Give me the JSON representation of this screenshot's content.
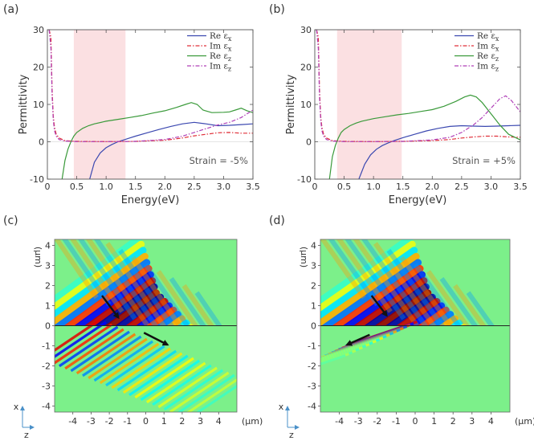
{
  "panel_labels": [
    "(a)",
    "(b)",
    "(c)",
    "(d)"
  ],
  "chart_data": [
    {
      "type": "line",
      "panel": "(a)",
      "xlabel": "Energy(eV)",
      "ylabel": "Permittivity",
      "xlim": [
        0,
        3.5
      ],
      "ylim": [
        -10,
        30
      ],
      "xticks": [
        "0",
        "0.5",
        "1.0",
        "1.5",
        "2.0",
        "2.5",
        "3.0",
        "3.5"
      ],
      "yticks": [
        "-10",
        "0",
        "10",
        "20",
        "30"
      ],
      "highlight_band": [
        0.45,
        1.33
      ],
      "annotation": "Strain = -5%",
      "legend_position": "top-right",
      "series": [
        {
          "name": "Re ε_x",
          "label": "Re ε",
          "sub": "x",
          "color": "#3b48b0",
          "style": "solid",
          "x": [
            0.72,
            0.8,
            0.9,
            1.0,
            1.1,
            1.2,
            1.3,
            1.4,
            1.5,
            1.7,
            1.9,
            2.1,
            2.3,
            2.5,
            2.7,
            2.9,
            3.1,
            3.3,
            3.5
          ],
          "y": [
            -10,
            -5.5,
            -3.0,
            -1.6,
            -0.7,
            0.0,
            0.5,
            1.0,
            1.5,
            2.4,
            3.3,
            4.1,
            4.8,
            5.2,
            4.8,
            4.3,
            4.4,
            4.6,
            4.8
          ]
        },
        {
          "name": "Im ε_x",
          "label": "Im ε",
          "sub": "x",
          "color": "#e0303a",
          "style": "dashdot",
          "x": [
            0.03,
            0.06,
            0.08,
            0.1,
            0.12,
            0.15,
            0.2,
            0.3,
            0.5,
            1.0,
            1.5,
            2.0,
            2.3,
            2.5,
            2.7,
            2.9,
            3.1,
            3.3,
            3.5
          ],
          "y": [
            30,
            28,
            14,
            7,
            4,
            2,
            1,
            0.3,
            0.1,
            0.05,
            0.1,
            0.4,
            1.0,
            1.6,
            2.0,
            2.4,
            2.5,
            2.3,
            2.3
          ]
        },
        {
          "name": "Re ε_z",
          "label": "Re ε",
          "sub": "z",
          "color": "#3a9a3a",
          "style": "solid",
          "x": [
            0.25,
            0.3,
            0.35,
            0.4,
            0.45,
            0.5,
            0.6,
            0.7,
            0.8,
            1.0,
            1.2,
            1.4,
            1.6,
            1.8,
            2.0,
            2.2,
            2.35,
            2.45,
            2.55,
            2.65,
            2.8,
            3.0,
            3.1,
            3.2,
            3.3,
            3.4,
            3.5
          ],
          "y": [
            -10,
            -5,
            -2,
            0,
            1.5,
            2.5,
            3.6,
            4.3,
            4.8,
            5.5,
            6.0,
            6.5,
            7.0,
            7.7,
            8.3,
            9.2,
            10.0,
            10.5,
            10.0,
            8.5,
            7.8,
            7.9,
            8.0,
            8.5,
            9.0,
            8.3,
            7.8
          ]
        },
        {
          "name": "Im ε_z",
          "label": "Im ε",
          "sub": "z",
          "color": "#b040b8",
          "style": "dashdot",
          "x": [
            0.03,
            0.06,
            0.08,
            0.1,
            0.12,
            0.15,
            0.2,
            0.3,
            0.5,
            1.0,
            1.5,
            2.0,
            2.3,
            2.5,
            2.7,
            2.9,
            3.1,
            3.3,
            3.5
          ],
          "y": [
            30,
            25,
            12,
            6,
            3,
            1.5,
            0.6,
            0.2,
            0.05,
            0.05,
            0.1,
            0.6,
            1.5,
            2.5,
            3.5,
            4.5,
            5.2,
            6.5,
            8.5
          ]
        }
      ]
    },
    {
      "type": "line",
      "panel": "(b)",
      "xlabel": "Energy(eV)",
      "ylabel": "Permittivity",
      "xlim": [
        0,
        3.5
      ],
      "ylim": [
        -10,
        30
      ],
      "xticks": [
        "0",
        "0.5",
        "1.0",
        "1.5",
        "2.0",
        "2.5",
        "3.0",
        "3.5"
      ],
      "yticks": [
        "-10",
        "0",
        "10",
        "20",
        "30"
      ],
      "highlight_band": [
        0.38,
        1.48
      ],
      "annotation": "Strain = +5%",
      "legend_position": "top-right",
      "series": [
        {
          "name": "Re ε_x",
          "label": "Re ε",
          "sub": "x",
          "color": "#3b48b0",
          "style": "solid",
          "x": [
            0.75,
            0.85,
            0.95,
            1.05,
            1.15,
            1.25,
            1.35,
            1.5,
            1.7,
            1.9,
            2.1,
            2.3,
            2.5,
            2.7,
            2.9,
            3.1,
            3.3,
            3.5
          ],
          "y": [
            -10,
            -6,
            -3.5,
            -2,
            -1.0,
            -0.3,
            0.3,
            1.1,
            2.0,
            2.9,
            3.6,
            4.1,
            4.3,
            4.2,
            4.1,
            4.2,
            4.3,
            4.4
          ]
        },
        {
          "name": "Im ε_x",
          "label": "Im ε",
          "sub": "x",
          "color": "#e0303a",
          "style": "dashdot",
          "x": [
            0.03,
            0.06,
            0.08,
            0.1,
            0.12,
            0.15,
            0.2,
            0.3,
            0.5,
            1.0,
            1.5,
            2.0,
            2.3,
            2.5,
            2.7,
            2.9,
            3.1,
            3.3,
            3.5
          ],
          "y": [
            30,
            28,
            14,
            7,
            4,
            2,
            1,
            0.3,
            0.1,
            0.05,
            0.1,
            0.3,
            0.6,
            1.0,
            1.3,
            1.5,
            1.5,
            1.3,
            1.2
          ]
        },
        {
          "name": "Re ε_z",
          "label": "Re ε",
          "sub": "z",
          "color": "#3a9a3a",
          "style": "solid",
          "x": [
            0.25,
            0.3,
            0.35,
            0.4,
            0.45,
            0.5,
            0.6,
            0.7,
            0.8,
            1.0,
            1.2,
            1.4,
            1.6,
            1.8,
            2.0,
            2.2,
            2.4,
            2.55,
            2.65,
            2.75,
            2.85,
            2.95,
            3.05,
            3.15,
            3.3,
            3.5
          ],
          "y": [
            -10,
            -4,
            -1,
            1,
            2.5,
            3.3,
            4.3,
            5.0,
            5.5,
            6.2,
            6.7,
            7.2,
            7.6,
            8.1,
            8.6,
            9.5,
            10.8,
            12.0,
            12.5,
            12.0,
            10.5,
            8.5,
            6.5,
            4.5,
            2.0,
            0.5
          ]
        },
        {
          "name": "Im ε_z",
          "label": "Im ε",
          "sub": "z",
          "color": "#b040b8",
          "style": "dashdot",
          "x": [
            0.03,
            0.06,
            0.08,
            0.1,
            0.12,
            0.15,
            0.2,
            0.3,
            0.5,
            1.0,
            1.5,
            2.0,
            2.3,
            2.5,
            2.7,
            2.85,
            3.0,
            3.15,
            3.25,
            3.35,
            3.5
          ],
          "y": [
            30,
            25,
            12,
            6,
            3,
            1.5,
            0.6,
            0.2,
            0.05,
            0.05,
            0.1,
            0.5,
            1.2,
            2.5,
            4.5,
            6.5,
            9.0,
            11.5,
            12.3,
            11.0,
            8.0
          ]
        }
      ]
    },
    {
      "type": "heatmap",
      "panel": "(c)",
      "x_unit": "(μm)",
      "y_unit": "(μm)",
      "xlim": [
        -5,
        5
      ],
      "ylim": [
        -4.3,
        4.3
      ],
      "xticks": [
        "-4",
        "-3",
        "-2",
        "-1",
        "0",
        "1",
        "2",
        "3",
        "4"
      ],
      "yticks": [
        "4",
        "3",
        "2",
        "1",
        "0",
        "-1",
        "-2",
        "-3",
        "-4"
      ],
      "interface_y": 0,
      "incident_arrow": {
        "from": [
          -2.4,
          1.5
        ],
        "to": [
          -1.5,
          0.4
        ]
      },
      "refracted_arrow": {
        "from": [
          -0.1,
          -0.35
        ],
        "to": [
          1.2,
          -0.95
        ]
      },
      "axis_x_label": "x",
      "axis_z_label": "z"
    },
    {
      "type": "heatmap",
      "panel": "(d)",
      "x_unit": "(μm)",
      "y_unit": "(μm)",
      "xlim": [
        -5,
        5
      ],
      "ylim": [
        -4.3,
        4.3
      ],
      "xticks": [
        "-4",
        "-3",
        "-2",
        "-1",
        "0",
        "1",
        "2",
        "3",
        "4"
      ],
      "yticks": [
        "4",
        "3",
        "2",
        "1",
        "0",
        "-1",
        "-2",
        "-3",
        "-4"
      ],
      "interface_y": 0,
      "incident_arrow": {
        "from": [
          -2.3,
          1.5
        ],
        "to": [
          -1.5,
          0.5
        ]
      },
      "refracted_arrow": {
        "from": [
          -2.4,
          -0.45
        ],
        "to": [
          -3.6,
          -0.95
        ]
      },
      "axis_x_label": "x",
      "axis_z_label": "z"
    }
  ]
}
